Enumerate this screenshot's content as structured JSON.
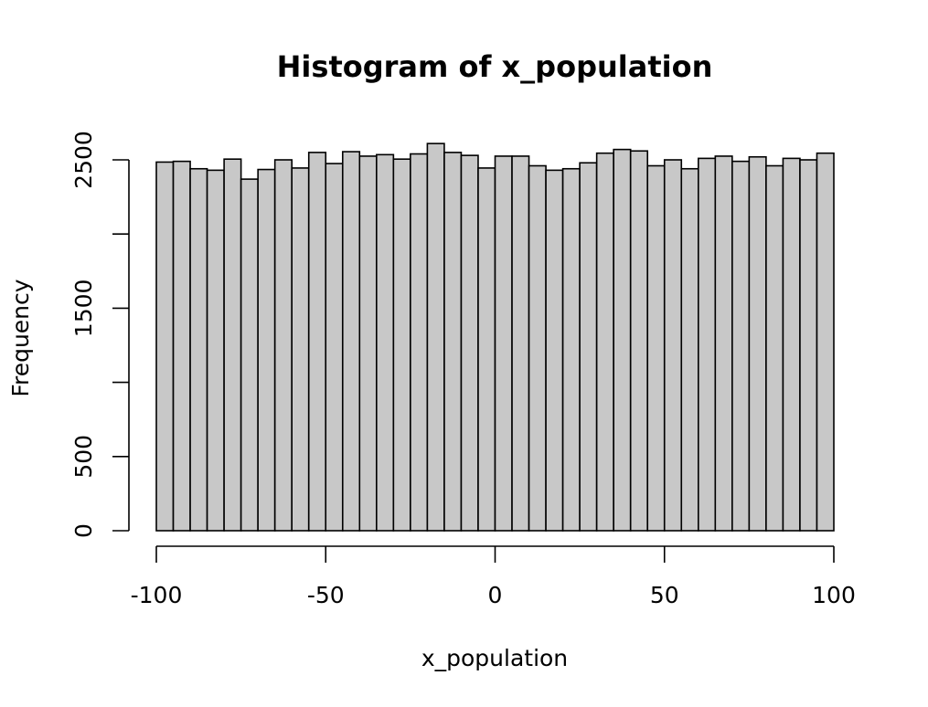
{
  "chart_data": {
    "type": "bar",
    "title": "Histogram of x_population",
    "xlabel": "x_population",
    "ylabel": "Frequency",
    "bar_color": "#c8c8c8",
    "xlim": [
      -100,
      100
    ],
    "ylim": [
      0,
      2500
    ],
    "x_ticks": [
      -100,
      -50,
      0,
      50,
      100
    ],
    "y_ticks": [
      0,
      500,
      1500,
      2500
    ],
    "bin_width": 5,
    "bins": [
      {
        "x0": -100,
        "x1": -95,
        "count": 2485
      },
      {
        "x0": -95,
        "x1": -90,
        "count": 2490
      },
      {
        "x0": -90,
        "x1": -85,
        "count": 2440
      },
      {
        "x0": -85,
        "x1": -80,
        "count": 2430
      },
      {
        "x0": -80,
        "x1": -75,
        "count": 2505
      },
      {
        "x0": -75,
        "x1": -70,
        "count": 2370
      },
      {
        "x0": -70,
        "x1": -65,
        "count": 2435
      },
      {
        "x0": -65,
        "x1": -60,
        "count": 2500
      },
      {
        "x0": -60,
        "x1": -55,
        "count": 2445
      },
      {
        "x0": -55,
        "x1": -50,
        "count": 2550
      },
      {
        "x0": -50,
        "x1": -45,
        "count": 2475
      },
      {
        "x0": -45,
        "x1": -40,
        "count": 2555
      },
      {
        "x0": -40,
        "x1": -35,
        "count": 2525
      },
      {
        "x0": -35,
        "x1": -30,
        "count": 2535
      },
      {
        "x0": -30,
        "x1": -25,
        "count": 2505
      },
      {
        "x0": -25,
        "x1": -20,
        "count": 2540
      },
      {
        "x0": -20,
        "x1": -15,
        "count": 2610
      },
      {
        "x0": -15,
        "x1": -10,
        "count": 2550
      },
      {
        "x0": -10,
        "x1": -5,
        "count": 2530
      },
      {
        "x0": -5,
        "x1": 0,
        "count": 2445
      },
      {
        "x0": 0,
        "x1": 5,
        "count": 2525
      },
      {
        "x0": 5,
        "x1": 10,
        "count": 2525
      },
      {
        "x0": 10,
        "x1": 15,
        "count": 2460
      },
      {
        "x0": 15,
        "x1": 20,
        "count": 2430
      },
      {
        "x0": 20,
        "x1": 25,
        "count": 2440
      },
      {
        "x0": 25,
        "x1": 30,
        "count": 2480
      },
      {
        "x0": 30,
        "x1": 35,
        "count": 2545
      },
      {
        "x0": 35,
        "x1": 40,
        "count": 2570
      },
      {
        "x0": 40,
        "x1": 45,
        "count": 2560
      },
      {
        "x0": 45,
        "x1": 50,
        "count": 2460
      },
      {
        "x0": 50,
        "x1": 55,
        "count": 2500
      },
      {
        "x0": 55,
        "x1": 60,
        "count": 2440
      },
      {
        "x0": 60,
        "x1": 65,
        "count": 2510
      },
      {
        "x0": 65,
        "x1": 70,
        "count": 2525
      },
      {
        "x0": 70,
        "x1": 75,
        "count": 2490
      },
      {
        "x0": 75,
        "x1": 80,
        "count": 2520
      },
      {
        "x0": 80,
        "x1": 85,
        "count": 2460
      },
      {
        "x0": 85,
        "x1": 90,
        "count": 2510
      },
      {
        "x0": 90,
        "x1": 95,
        "count": 2500
      },
      {
        "x0": 95,
        "x1": 100,
        "count": 2545
      }
    ]
  }
}
